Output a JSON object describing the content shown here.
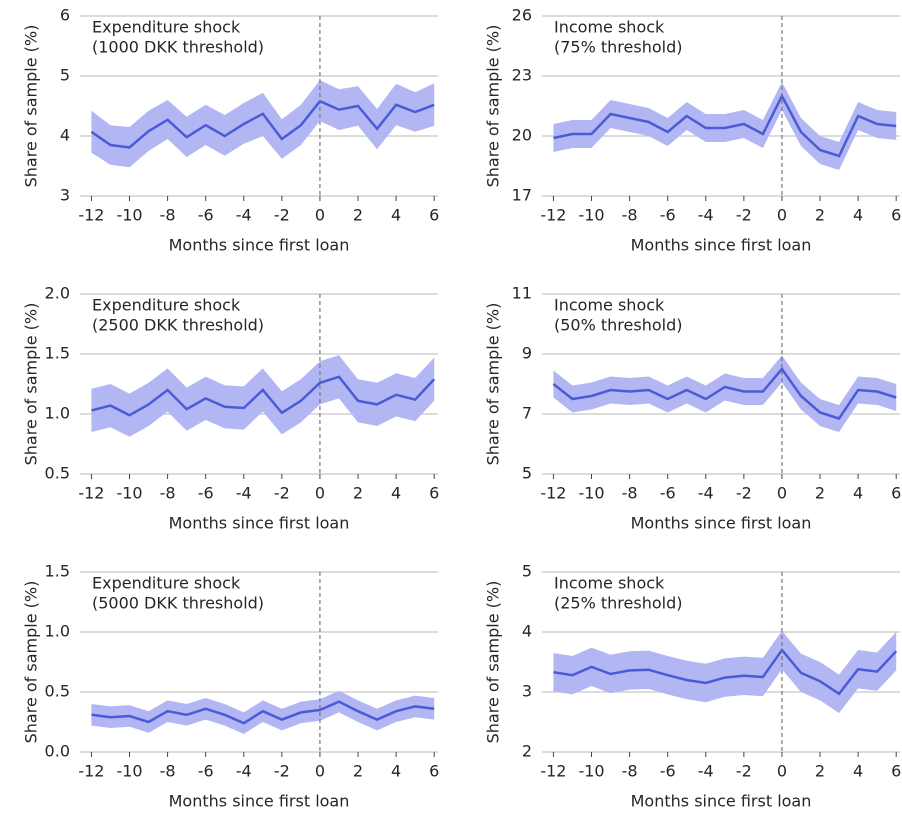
{
  "chart_data": [
    {
      "type": "line",
      "annotation": [
        "Expenditure shock",
        "(1000 DKK threshold)"
      ],
      "xlabel": "Months since first loan",
      "ylabel": "Share of sample (%)",
      "x": [
        -12,
        -11,
        -10,
        -9,
        -8,
        -7,
        -6,
        -5,
        -4,
        -3,
        -2,
        -1,
        0,
        1,
        2,
        3,
        4,
        5,
        6
      ],
      "values": [
        4.07,
        3.85,
        3.81,
        4.08,
        4.27,
        3.98,
        4.18,
        4.0,
        4.2,
        4.37,
        3.95,
        4.18,
        4.58,
        4.44,
        4.5,
        4.12,
        4.52,
        4.4,
        4.52
      ],
      "lower": [
        3.72,
        3.52,
        3.48,
        3.75,
        3.95,
        3.65,
        3.85,
        3.67,
        3.87,
        4.0,
        3.62,
        3.85,
        4.25,
        4.1,
        4.17,
        3.78,
        4.18,
        4.07,
        4.17
      ],
      "upper": [
        4.42,
        4.18,
        4.15,
        4.42,
        4.6,
        4.32,
        4.52,
        4.35,
        4.55,
        4.72,
        4.28,
        4.52,
        4.93,
        4.78,
        4.83,
        4.45,
        4.87,
        4.73,
        4.88
      ],
      "color": "#4b5bd8",
      "band_color": "#b2b7f4",
      "vline": 0,
      "xlim": [
        -12.6,
        6.2
      ],
      "xticks": [
        -12,
        -10,
        -8,
        -6,
        -4,
        -2,
        0,
        2,
        4,
        6
      ],
      "ylim": [
        3,
        6
      ],
      "yticks": [
        3,
        4,
        5,
        6
      ],
      "grid": true
    },
    {
      "type": "line",
      "annotation": [
        "Income shock",
        "(75% threshold)"
      ],
      "xlabel": "Months since first loan",
      "ylabel": "Share of sample (%)",
      "x": [
        -12,
        -11,
        -10,
        -9,
        -8,
        -7,
        -6,
        -5,
        -4,
        -3,
        -2,
        -1,
        0,
        1,
        2,
        3,
        4,
        5,
        6
      ],
      "values": [
        19.9,
        20.1,
        20.1,
        21.1,
        20.9,
        20.7,
        20.2,
        21.0,
        20.4,
        20.4,
        20.6,
        20.1,
        22.0,
        20.2,
        19.3,
        19.0,
        21.0,
        20.6,
        20.5
      ],
      "lower": [
        19.2,
        19.4,
        19.4,
        20.4,
        20.2,
        20.0,
        19.5,
        20.3,
        19.7,
        19.7,
        19.9,
        19.4,
        21.3,
        19.5,
        18.6,
        18.3,
        20.3,
        19.9,
        19.8
      ],
      "upper": [
        20.6,
        20.8,
        20.8,
        21.8,
        21.6,
        21.4,
        20.9,
        21.7,
        21.1,
        21.1,
        21.3,
        20.8,
        22.7,
        20.9,
        20.0,
        19.7,
        21.7,
        21.3,
        21.2
      ],
      "color": "#4b5bd8",
      "band_color": "#b2b7f4",
      "vline": 0,
      "xlim": [
        -12.6,
        6.2
      ],
      "xticks": [
        -12,
        -10,
        -8,
        -6,
        -4,
        -2,
        0,
        2,
        4,
        6
      ],
      "ylim": [
        17,
        26
      ],
      "yticks": [
        17,
        20,
        23,
        26
      ],
      "grid": true
    },
    {
      "type": "line",
      "annotation": [
        "Expenditure shock",
        "(2500 DKK threshold)"
      ],
      "xlabel": "Months since first loan",
      "ylabel": "Share of sample (%)",
      "x": [
        -12,
        -11,
        -10,
        -9,
        -8,
        -7,
        -6,
        -5,
        -4,
        -3,
        -2,
        -1,
        0,
        1,
        2,
        3,
        4,
        5,
        6
      ],
      "values": [
        1.03,
        1.07,
        0.99,
        1.08,
        1.2,
        1.04,
        1.13,
        1.06,
        1.05,
        1.2,
        1.01,
        1.11,
        1.26,
        1.31,
        1.11,
        1.08,
        1.16,
        1.12,
        1.29
      ],
      "lower": [
        0.85,
        0.89,
        0.81,
        0.9,
        1.02,
        0.86,
        0.95,
        0.88,
        0.87,
        1.02,
        0.83,
        0.93,
        1.08,
        1.13,
        0.93,
        0.9,
        0.98,
        0.94,
        1.11
      ],
      "upper": [
        1.21,
        1.25,
        1.17,
        1.26,
        1.38,
        1.22,
        1.31,
        1.24,
        1.23,
        1.38,
        1.19,
        1.29,
        1.44,
        1.49,
        1.29,
        1.26,
        1.34,
        1.3,
        1.47
      ],
      "color": "#4b5bd8",
      "band_color": "#b2b7f4",
      "vline": 0,
      "xlim": [
        -12.6,
        6.2
      ],
      "xticks": [
        -12,
        -10,
        -8,
        -6,
        -4,
        -2,
        0,
        2,
        4,
        6
      ],
      "ylim": [
        0.5,
        2.0
      ],
      "yticks": [
        0.5,
        {
          "value": 1,
          "label": "1.0"
        },
        1.5,
        {
          "value": 2,
          "label": "2.0"
        }
      ],
      "grid": true
    },
    {
      "type": "line",
      "annotation": [
        "Income shock",
        "(50% threshold)"
      ],
      "xlabel": "Months since first loan",
      "ylabel": "Share of sample (%)",
      "x": [
        -12,
        -11,
        -10,
        -9,
        -8,
        -7,
        -6,
        -5,
        -4,
        -3,
        -2,
        -1,
        0,
        1,
        2,
        3,
        4,
        5,
        6
      ],
      "values": [
        8.0,
        7.5,
        7.6,
        7.8,
        7.75,
        7.8,
        7.5,
        7.8,
        7.5,
        7.9,
        7.75,
        7.75,
        8.5,
        7.6,
        7.05,
        6.85,
        7.8,
        7.75,
        7.55
      ],
      "lower": [
        7.55,
        7.05,
        7.15,
        7.35,
        7.3,
        7.35,
        7.05,
        7.35,
        7.05,
        7.45,
        7.3,
        7.3,
        8.05,
        7.15,
        6.6,
        6.4,
        7.35,
        7.3,
        7.1
      ],
      "upper": [
        8.45,
        7.95,
        8.05,
        8.25,
        8.2,
        8.25,
        7.95,
        8.25,
        7.95,
        8.35,
        8.2,
        8.2,
        8.95,
        8.05,
        7.5,
        7.3,
        8.25,
        8.2,
        8.0
      ],
      "color": "#4b5bd8",
      "band_color": "#b2b7f4",
      "vline": 0,
      "xlim": [
        -12.6,
        6.2
      ],
      "xticks": [
        -12,
        -10,
        -8,
        -6,
        -4,
        -2,
        0,
        2,
        4,
        6
      ],
      "ylim": [
        5,
        11
      ],
      "yticks": [
        5,
        7,
        9,
        11
      ],
      "grid": true
    },
    {
      "type": "line",
      "annotation": [
        "Expenditure shock",
        "(5000 DKK threshold)"
      ],
      "xlabel": "Months since first loan",
      "ylabel": "Share of sample (%)",
      "x": [
        -12,
        -11,
        -10,
        -9,
        -8,
        -7,
        -6,
        -5,
        -4,
        -3,
        -2,
        -1,
        0,
        1,
        2,
        3,
        4,
        5,
        6
      ],
      "values": [
        0.31,
        0.29,
        0.3,
        0.25,
        0.34,
        0.31,
        0.36,
        0.31,
        0.24,
        0.34,
        0.27,
        0.33,
        0.35,
        0.42,
        0.34,
        0.27,
        0.34,
        0.38,
        0.36
      ],
      "lower": [
        0.22,
        0.2,
        0.21,
        0.16,
        0.25,
        0.22,
        0.27,
        0.22,
        0.15,
        0.25,
        0.18,
        0.24,
        0.26,
        0.33,
        0.25,
        0.18,
        0.25,
        0.29,
        0.27
      ],
      "upper": [
        0.4,
        0.38,
        0.39,
        0.34,
        0.43,
        0.4,
        0.45,
        0.4,
        0.33,
        0.43,
        0.36,
        0.42,
        0.44,
        0.51,
        0.43,
        0.36,
        0.43,
        0.47,
        0.45
      ],
      "color": "#4b5bd8",
      "band_color": "#b2b7f4",
      "vline": 0,
      "xlim": [
        -12.6,
        6.2
      ],
      "xticks": [
        -12,
        -10,
        -8,
        -6,
        -4,
        -2,
        0,
        2,
        4,
        6
      ],
      "ylim": [
        0,
        1.5
      ],
      "yticks": [
        {
          "value": 0,
          "label": "0.0"
        },
        0.5,
        {
          "value": 1,
          "label": "1.0"
        },
        1.5
      ],
      "grid": true
    },
    {
      "type": "line",
      "annotation": [
        "Income shock",
        "(25% threshold)"
      ],
      "xlabel": "Months since first loan",
      "ylabel": "Share of sample (%)",
      "x": [
        -12,
        -11,
        -10,
        -9,
        -8,
        -7,
        -6,
        -5,
        -4,
        -3,
        -2,
        -1,
        0,
        1,
        2,
        3,
        4,
        5,
        6
      ],
      "values": [
        3.33,
        3.28,
        3.42,
        3.3,
        3.36,
        3.37,
        3.28,
        3.2,
        3.15,
        3.24,
        3.27,
        3.25,
        3.7,
        3.32,
        3.18,
        2.97,
        3.38,
        3.34,
        3.68
      ],
      "lower": [
        3.01,
        2.96,
        3.1,
        2.98,
        3.04,
        3.05,
        2.96,
        2.88,
        2.83,
        2.92,
        2.95,
        2.93,
        3.38,
        3.0,
        2.86,
        2.65,
        3.06,
        3.02,
        3.36
      ],
      "upper": [
        3.65,
        3.6,
        3.74,
        3.62,
        3.68,
        3.69,
        3.6,
        3.52,
        3.47,
        3.56,
        3.59,
        3.57,
        4.02,
        3.64,
        3.5,
        3.29,
        3.7,
        3.66,
        4.0
      ],
      "color": "#4b5bd8",
      "band_color": "#b2b7f4",
      "vline": 0,
      "xlim": [
        -12.6,
        6.2
      ],
      "xticks": [
        -12,
        -10,
        -8,
        -6,
        -4,
        -2,
        0,
        2,
        4,
        6
      ],
      "ylim": [
        2,
        5
      ],
      "yticks": [
        2,
        3,
        4,
        5
      ],
      "grid": true
    }
  ]
}
